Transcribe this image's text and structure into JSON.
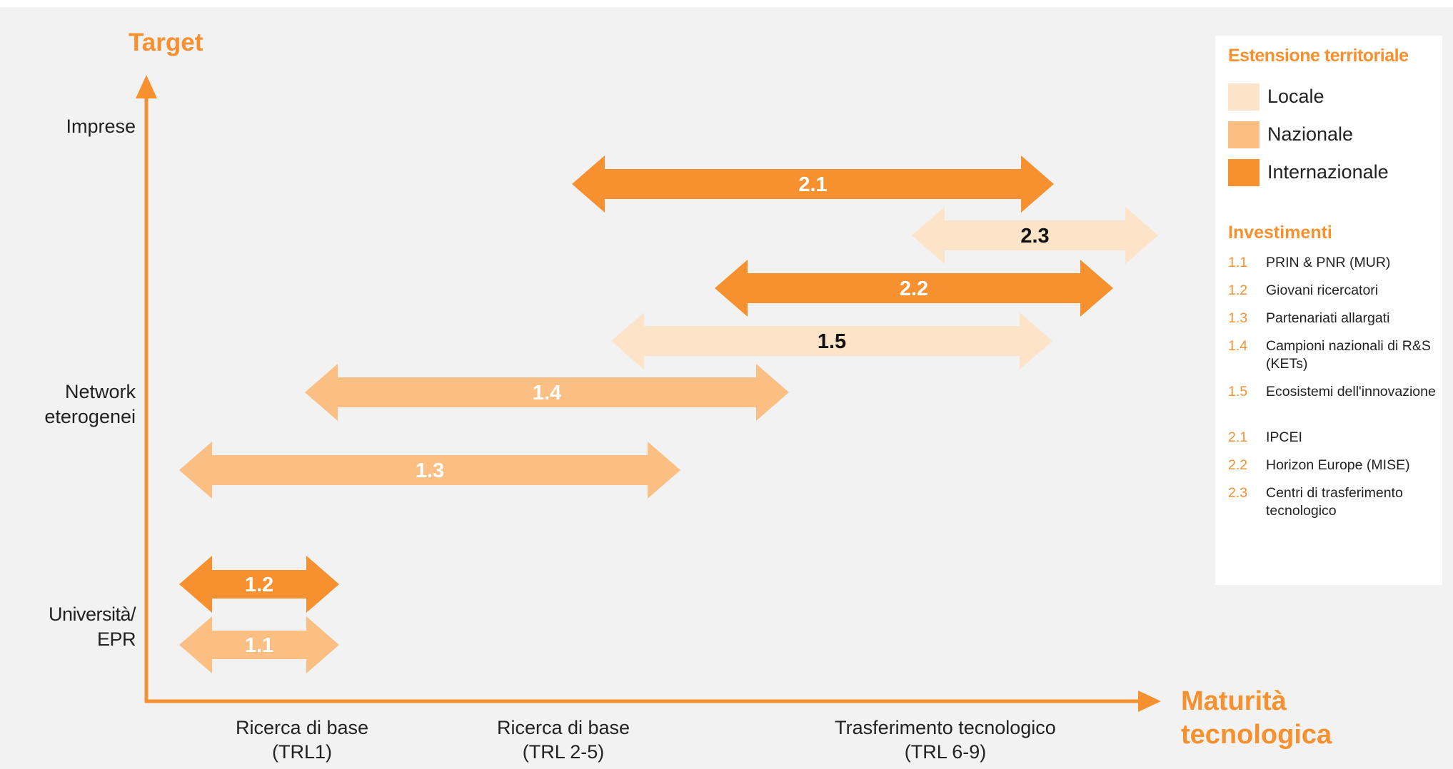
{
  "y_axis": {
    "title": "Target",
    "ticks": [
      {
        "label": "Imprese"
      },
      {
        "label": "Network\neterogenei"
      },
      {
        "label": "Università/\nEPR"
      }
    ]
  },
  "x_axis": {
    "title": "Maturità\ntecnologica",
    "ticks": [
      {
        "label": "Ricerca di base\n(TRL1)"
      },
      {
        "label": "Ricerca di base\n(TRL 2-5)"
      },
      {
        "label": "Trasferimento tecnologico\n(TRL 6-9)"
      }
    ]
  },
  "legend": {
    "title": "Estensione territoriale",
    "items": [
      {
        "label": "Locale",
        "color": "#fde3c8"
      },
      {
        "label": "Nazionale",
        "color": "#fbbf83"
      },
      {
        "label": "Internazionale",
        "color": "#f7902f"
      }
    ]
  },
  "investments": {
    "title": "Investimenti",
    "items": [
      {
        "code": "1.1",
        "label": "PRIN & PNR (MUR)"
      },
      {
        "code": "1.2",
        "label": "Giovani ricercatori"
      },
      {
        "code": "1.3",
        "label": "Partenariati allargati"
      },
      {
        "code": "1.4",
        "label": "Campioni nazionali di R&S (KETs)"
      },
      {
        "code": "1.5",
        "label": "Ecosistemi dell'innovazione"
      },
      {
        "code": "2.1",
        "label": "IPCEI"
      },
      {
        "code": "2.2",
        "label": "Horizon Europe (MISE)"
      },
      {
        "code": "2.3",
        "label": "Centri di trasferimento tecnologico"
      }
    ]
  },
  "arrows": [
    {
      "label": "2.1",
      "extension": "Internazionale",
      "color": "#f7902f",
      "text_color": "#ffffff"
    },
    {
      "label": "2.3",
      "extension": "Locale",
      "color": "#fde3c8",
      "text_color": "#111111"
    },
    {
      "label": "2.2",
      "extension": "Internazionale",
      "color": "#f7902f",
      "text_color": "#ffffff"
    },
    {
      "label": "1.5",
      "extension": "Locale",
      "color": "#fde3c8",
      "text_color": "#111111"
    },
    {
      "label": "1.4",
      "extension": "Nazionale",
      "color": "#fbbf83",
      "text_color": "#ffffff"
    },
    {
      "label": "1.3",
      "extension": "Nazionale",
      "color": "#fbbf83",
      "text_color": "#ffffff"
    },
    {
      "label": "1.2",
      "extension": "Internazionale",
      "color": "#f7902f",
      "text_color": "#ffffff"
    },
    {
      "label": "1.1",
      "extension": "Nazionale",
      "color": "#fbbf83",
      "text_color": "#ffffff"
    }
  ],
  "colors": {
    "axis": "#f7902f",
    "accent": "#f7902f"
  }
}
